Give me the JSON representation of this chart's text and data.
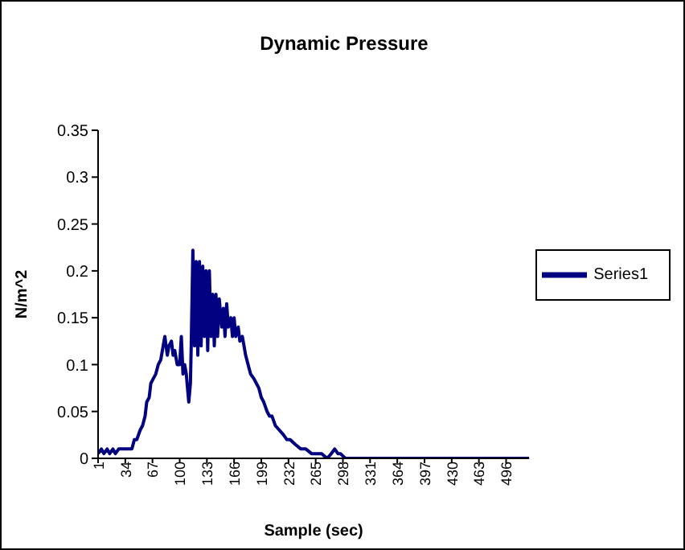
{
  "chart_data": {
    "type": "line",
    "title": "Dynamic Pressure",
    "xlabel": "Sample (sec)",
    "ylabel": "N/m^2",
    "x": [
      1,
      5,
      8,
      12,
      15,
      19,
      22,
      26,
      30,
      34,
      38,
      42,
      45,
      48,
      52,
      55,
      58,
      60,
      63,
      65,
      68,
      71,
      74,
      77,
      80,
      82,
      85,
      87,
      90,
      92,
      94,
      97,
      100,
      102,
      104,
      106,
      108,
      111,
      113,
      114,
      116,
      118,
      120,
      122,
      124,
      126,
      128,
      130,
      132,
      134,
      136,
      138,
      140,
      142,
      144,
      146,
      148,
      151,
      153,
      155,
      157,
      159,
      162,
      164,
      166,
      168,
      171,
      173,
      176,
      180,
      183,
      186,
      190,
      193,
      196,
      199,
      202,
      206,
      209,
      212,
      216,
      221,
      226,
      230,
      234,
      240,
      247,
      253,
      260,
      266,
      272,
      279,
      284,
      288,
      292,
      295,
      301,
      320,
      360,
      400,
      440,
      480,
      524
    ],
    "xlim": [
      1,
      524
    ],
    "xticks": [
      1,
      34,
      67,
      100,
      133,
      166,
      199,
      232,
      265,
      298,
      331,
      364,
      397,
      430,
      463,
      496
    ],
    "ylim": [
      0,
      0.35
    ],
    "yticks": [
      0,
      0.05,
      0.1,
      0.15,
      0.2,
      0.25,
      0.3,
      0.35
    ],
    "legend": "right",
    "series": [
      {
        "name": "Series1",
        "color": "#000080",
        "values": [
          0.005,
          0.01,
          0.005,
          0.01,
          0.005,
          0.01,
          0.005,
          0.01,
          0.01,
          0.01,
          0.01,
          0.01,
          0.02,
          0.02,
          0.03,
          0.035,
          0.045,
          0.06,
          0.065,
          0.08,
          0.085,
          0.09,
          0.1,
          0.105,
          0.12,
          0.13,
          0.11,
          0.12,
          0.125,
          0.11,
          0.115,
          0.1,
          0.1,
          0.13,
          0.09,
          0.1,
          0.09,
          0.06,
          0.08,
          0.12,
          0.222,
          0.12,
          0.21,
          0.11,
          0.21,
          0.12,
          0.205,
          0.13,
          0.2,
          0.115,
          0.2,
          0.13,
          0.175,
          0.12,
          0.175,
          0.13,
          0.17,
          0.14,
          0.16,
          0.13,
          0.165,
          0.14,
          0.15,
          0.13,
          0.15,
          0.13,
          0.14,
          0.125,
          0.13,
          0.11,
          0.1,
          0.09,
          0.085,
          0.08,
          0.075,
          0.065,
          0.06,
          0.05,
          0.045,
          0.045,
          0.035,
          0.03,
          0.025,
          0.02,
          0.02,
          0.015,
          0.01,
          0.01,
          0.005,
          0.005,
          0.005,
          0,
          0.005,
          0.01,
          0.005,
          0.005,
          0,
          0,
          0,
          0,
          0,
          0,
          0
        ]
      }
    ]
  }
}
